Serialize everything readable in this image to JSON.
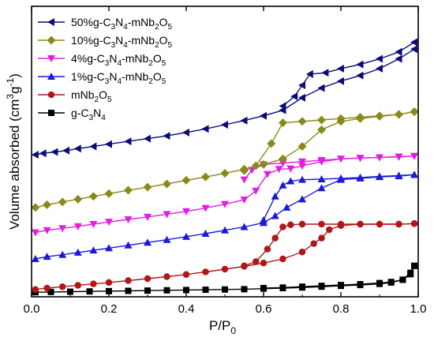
{
  "chart_data": {
    "type": "line",
    "xlabel": "P/P0",
    "ylabel": "Volume absorbed (cm3g-1)",
    "xlim": [
      0,
      1.0
    ],
    "ylim": [
      0,
      100
    ],
    "x_ticks": [
      "0.0",
      "0.2",
      "0.4",
      "0.6",
      "0.8",
      "1.0"
    ],
    "y_ticks_shown": false,
    "legend_position": "top-left",
    "series": [
      {
        "name": "50%g-C3N4-mNb2O5",
        "label_parts": [
          [
            "50%g-C",
            ""
          ],
          [
            "3",
            "sub"
          ],
          [
            "N",
            ""
          ],
          [
            "4",
            "sub"
          ],
          [
            "-mNb",
            ""
          ],
          [
            "2",
            "sub"
          ],
          [
            "O",
            ""
          ],
          [
            "5",
            "sub"
          ]
        ],
        "color": "#0b0b7a",
        "marker": "triangle-left",
        "adsorption": [
          [
            0.01,
            50
          ],
          [
            0.03,
            50.5
          ],
          [
            0.06,
            51
          ],
          [
            0.09,
            51.5
          ],
          [
            0.12,
            52.2
          ],
          [
            0.16,
            53
          ],
          [
            0.2,
            53.8
          ],
          [
            0.25,
            54.8
          ],
          [
            0.3,
            55.8
          ],
          [
            0.35,
            56.8
          ],
          [
            0.4,
            58
          ],
          [
            0.45,
            59.3
          ],
          [
            0.5,
            60.8
          ],
          [
            0.55,
            62.3
          ],
          [
            0.6,
            64
          ],
          [
            0.65,
            66
          ],
          [
            0.7,
            70.5
          ],
          [
            0.75,
            74
          ],
          [
            0.8,
            76.5
          ],
          [
            0.85,
            78.5
          ],
          [
            0.9,
            81
          ],
          [
            0.95,
            84.5
          ],
          [
            0.99,
            88
          ]
        ],
        "desorption": [
          [
            0.99,
            90.5
          ],
          [
            0.95,
            87
          ],
          [
            0.9,
            84.5
          ],
          [
            0.85,
            82.5
          ],
          [
            0.8,
            81
          ],
          [
            0.76,
            79.5
          ],
          [
            0.72,
            79
          ],
          [
            0.7,
            75
          ],
          [
            0.68,
            71
          ],
          [
            0.65,
            67.5
          ]
        ]
      },
      {
        "name": "10%g-C3N4-mNb2O5",
        "label_parts": [
          [
            "10%g-C",
            ""
          ],
          [
            "3",
            "sub"
          ],
          [
            "N",
            ""
          ],
          [
            "4",
            "sub"
          ],
          [
            "-mNb",
            ""
          ],
          [
            "2",
            "sub"
          ],
          [
            "O",
            ""
          ],
          [
            "5",
            "sub"
          ]
        ],
        "color": "#8a8a1a",
        "marker": "diamond",
        "adsorption": [
          [
            0.01,
            31
          ],
          [
            0.04,
            32
          ],
          [
            0.08,
            33
          ],
          [
            0.12,
            34
          ],
          [
            0.16,
            35
          ],
          [
            0.2,
            36
          ],
          [
            0.25,
            37.2
          ],
          [
            0.3,
            38.3
          ],
          [
            0.35,
            39.5
          ],
          [
            0.4,
            40.8
          ],
          [
            0.45,
            42
          ],
          [
            0.5,
            43.3
          ],
          [
            0.55,
            44.8
          ],
          [
            0.6,
            46.5
          ],
          [
            0.65,
            48.5
          ],
          [
            0.7,
            53
          ],
          [
            0.75,
            59
          ],
          [
            0.8,
            62
          ],
          [
            0.85,
            63
          ],
          [
            0.9,
            63.8
          ],
          [
            0.95,
            64.5
          ],
          [
            0.99,
            65.5
          ]
        ],
        "desorption": [
          [
            0.99,
            65.5
          ],
          [
            0.95,
            64.5
          ],
          [
            0.9,
            64
          ],
          [
            0.85,
            63.5
          ],
          [
            0.8,
            63
          ],
          [
            0.75,
            62.5
          ],
          [
            0.7,
            62
          ],
          [
            0.65,
            61.5
          ],
          [
            0.62,
            54
          ],
          [
            0.58,
            46
          ],
          [
            0.55,
            44.3
          ]
        ]
      },
      {
        "name": "4%g-C3N4-mNb2O5",
        "label_parts": [
          [
            "4%g-C",
            ""
          ],
          [
            "3",
            "sub"
          ],
          [
            "N",
            ""
          ],
          [
            "4",
            "sub"
          ],
          [
            "-mNb",
            ""
          ],
          [
            "2",
            "sub"
          ],
          [
            "O",
            ""
          ],
          [
            "5",
            "sub"
          ]
        ],
        "color": "#e020e0",
        "marker": "triangle-down",
        "adsorption": [
          [
            0.01,
            22
          ],
          [
            0.04,
            22.8
          ],
          [
            0.08,
            23.5
          ],
          [
            0.12,
            24.2
          ],
          [
            0.16,
            25
          ],
          [
            0.2,
            25.8
          ],
          [
            0.25,
            26.7
          ],
          [
            0.3,
            27.6
          ],
          [
            0.35,
            28.6
          ],
          [
            0.4,
            29.6
          ],
          [
            0.45,
            30.8
          ],
          [
            0.5,
            32.2
          ],
          [
            0.55,
            33.8
          ],
          [
            0.58,
            37
          ],
          [
            0.61,
            43
          ],
          [
            0.64,
            44.8
          ],
          [
            0.67,
            45
          ],
          [
            0.7,
            46
          ],
          [
            0.75,
            47.5
          ],
          [
            0.8,
            48.5
          ],
          [
            0.85,
            48.8
          ],
          [
            0.9,
            49
          ],
          [
            0.95,
            49.3
          ],
          [
            0.99,
            49.5
          ]
        ],
        "desorption": [
          [
            0.99,
            49.5
          ],
          [
            0.95,
            49.2
          ],
          [
            0.9,
            49
          ],
          [
            0.85,
            48.8
          ],
          [
            0.8,
            48.5
          ],
          [
            0.75,
            48
          ],
          [
            0.7,
            47.5
          ],
          [
            0.65,
            47
          ],
          [
            0.6,
            46.5
          ],
          [
            0.57,
            44.5
          ],
          [
            0.55,
            41
          ]
        ]
      },
      {
        "name": "1%g-C3N4-mNb2O5",
        "label_parts": [
          [
            "1%g-C",
            ""
          ],
          [
            "3",
            "sub"
          ],
          [
            "N",
            ""
          ],
          [
            "4",
            "sub"
          ],
          [
            "-mNb",
            ""
          ],
          [
            "2",
            "sub"
          ],
          [
            "O",
            ""
          ],
          [
            "5",
            "sub"
          ]
        ],
        "color": "#1a1ad8",
        "marker": "triangle-up",
        "adsorption": [
          [
            0.01,
            12.5
          ],
          [
            0.04,
            13.3
          ],
          [
            0.08,
            14
          ],
          [
            0.12,
            14.8
          ],
          [
            0.16,
            15.6
          ],
          [
            0.2,
            16.4
          ],
          [
            0.25,
            17.4
          ],
          [
            0.3,
            18.4
          ],
          [
            0.35,
            19.4
          ],
          [
            0.4,
            20.5
          ],
          [
            0.45,
            21.6
          ],
          [
            0.5,
            22.8
          ],
          [
            0.55,
            24
          ],
          [
            0.6,
            25.5
          ],
          [
            0.63,
            28
          ],
          [
            0.66,
            31
          ],
          [
            0.7,
            34
          ],
          [
            0.75,
            38
          ],
          [
            0.8,
            41
          ],
          [
            0.85,
            41.5
          ],
          [
            0.9,
            42
          ],
          [
            0.95,
            42.3
          ],
          [
            0.99,
            42.8
          ]
        ],
        "desorption": [
          [
            0.99,
            42.8
          ],
          [
            0.95,
            42.5
          ],
          [
            0.9,
            42.2
          ],
          [
            0.85,
            41.8
          ],
          [
            0.8,
            41.5
          ],
          [
            0.75,
            41.2
          ],
          [
            0.7,
            41
          ],
          [
            0.67,
            40.5
          ],
          [
            0.65,
            39
          ],
          [
            0.63,
            35
          ],
          [
            0.6,
            26.5
          ]
        ]
      },
      {
        "name": "mNb2O5",
        "label_parts": [
          [
            "mNb",
            ""
          ],
          [
            "2",
            "sub"
          ],
          [
            "O",
            ""
          ],
          [
            "5",
            "sub"
          ]
        ],
        "color": "#b01818",
        "marker": "circle",
        "adsorption": [
          [
            0.01,
            1.5
          ],
          [
            0.04,
            2
          ],
          [
            0.08,
            2.5
          ],
          [
            0.12,
            3
          ],
          [
            0.16,
            3.5
          ],
          [
            0.2,
            4
          ],
          [
            0.25,
            4.7
          ],
          [
            0.3,
            5.4
          ],
          [
            0.35,
            6.1
          ],
          [
            0.4,
            6.9
          ],
          [
            0.45,
            7.8
          ],
          [
            0.5,
            8.8
          ],
          [
            0.55,
            9.8
          ],
          [
            0.6,
            11
          ],
          [
            0.65,
            12.5
          ],
          [
            0.7,
            15
          ],
          [
            0.73,
            18
          ],
          [
            0.75,
            20
          ],
          [
            0.77,
            23
          ],
          [
            0.8,
            24.5
          ],
          [
            0.85,
            25
          ],
          [
            0.9,
            25
          ],
          [
            0.95,
            25
          ],
          [
            0.99,
            25.2
          ]
        ],
        "desorption": [
          [
            0.99,
            25.2
          ],
          [
            0.95,
            25
          ],
          [
            0.9,
            25
          ],
          [
            0.85,
            25
          ],
          [
            0.8,
            25
          ],
          [
            0.75,
            25
          ],
          [
            0.7,
            25
          ],
          [
            0.67,
            24.8
          ],
          [
            0.65,
            24
          ],
          [
            0.63,
            20
          ],
          [
            0.61,
            16
          ],
          [
            0.58,
            11.5
          ],
          [
            0.55,
            10
          ]
        ]
      },
      {
        "name": "g-C3N4",
        "label_parts": [
          [
            "g-C",
            ""
          ],
          [
            "3",
            "sub"
          ],
          [
            "N",
            ""
          ],
          [
            "4",
            "sub"
          ]
        ],
        "color": "#000000",
        "marker": "square",
        "adsorption": [
          [
            0.01,
            0.5
          ],
          [
            0.05,
            0.6
          ],
          [
            0.1,
            0.7
          ],
          [
            0.15,
            0.8
          ],
          [
            0.2,
            0.9
          ],
          [
            0.25,
            1.0
          ],
          [
            0.3,
            1.1
          ],
          [
            0.35,
            1.2
          ],
          [
            0.4,
            1.3
          ],
          [
            0.45,
            1.4
          ],
          [
            0.5,
            1.5
          ],
          [
            0.55,
            1.6
          ],
          [
            0.6,
            1.8
          ],
          [
            0.65,
            2.0
          ],
          [
            0.7,
            2.2
          ],
          [
            0.75,
            2.5
          ],
          [
            0.8,
            2.8
          ],
          [
            0.85,
            3.1
          ],
          [
            0.9,
            3.5
          ],
          [
            0.93,
            4
          ],
          [
            0.96,
            5
          ],
          [
            0.98,
            7.5
          ],
          [
            0.99,
            10
          ]
        ],
        "desorption": [
          [
            0.99,
            10
          ],
          [
            0.98,
            7
          ],
          [
            0.96,
            5
          ],
          [
            0.93,
            4.2
          ],
          [
            0.9,
            3.8
          ],
          [
            0.85,
            3.4
          ],
          [
            0.8,
            3.1
          ],
          [
            0.75,
            2.8
          ],
          [
            0.7,
            2.5
          ],
          [
            0.65,
            2.2
          ],
          [
            0.6,
            2
          ]
        ]
      }
    ]
  }
}
